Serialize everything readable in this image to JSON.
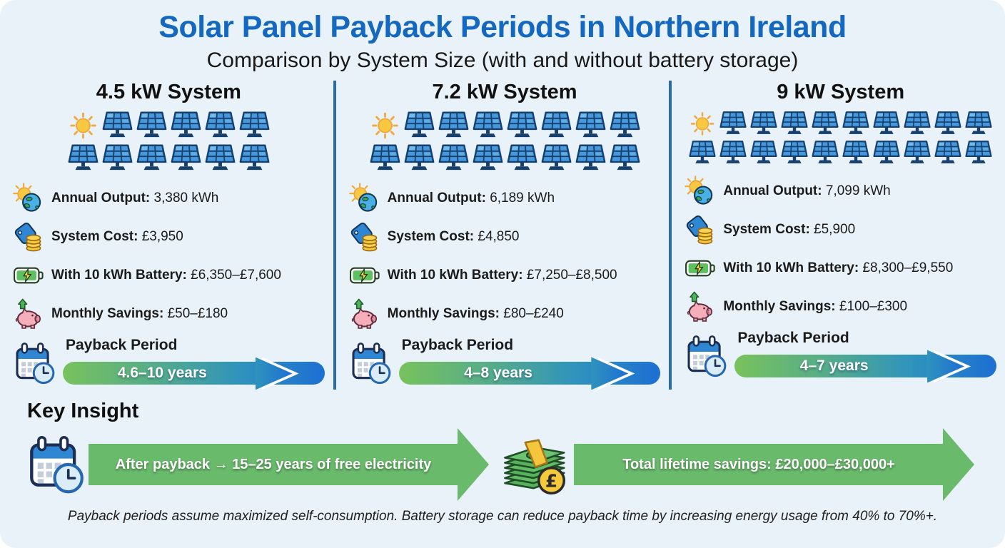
{
  "header": {
    "title": "Solar Panel Payback Periods in Northern Ireland",
    "subtitle": "Comparison by System Size (with and without battery storage)"
  },
  "columns": [
    {
      "title": "4.5 kW System",
      "pictograph": {
        "sun": 1,
        "panels_row1": 5,
        "panels_row2": 6
      },
      "stats": [
        {
          "icon": "sun-earth-icon",
          "label": "Annual Output:",
          "value": "3,380 kWh"
        },
        {
          "icon": "price-tag-coins-icon",
          "label": "System Cost:",
          "value": "£3,950"
        },
        {
          "icon": "battery-icon",
          "label": "With 10 kWh Battery:",
          "value": "£6,350–£7,600"
        },
        {
          "icon": "piggy-bank-icon",
          "label": "Monthly Savings:",
          "value": "£50–£180"
        }
      ],
      "payback": {
        "icon": "calendar-clock-icon",
        "label": "Payback Period",
        "value": "4.6–10 years"
      }
    },
    {
      "title": "7.2 kW System",
      "pictograph": {
        "sun": 1,
        "panels_row1": 7,
        "panels_row2": 8
      },
      "stats": [
        {
          "icon": "sun-earth-icon",
          "label": "Annual Output:",
          "value": "6,189 kWh"
        },
        {
          "icon": "price-tag-coins-icon",
          "label": "System Cost:",
          "value": "£4,850"
        },
        {
          "icon": "battery-icon",
          "label": "With 10 kWh Battery:",
          "value": "£7,250–£8,500"
        },
        {
          "icon": "piggy-bank-icon",
          "label": "Monthly Savings:",
          "value": "£80–£240"
        }
      ],
      "payback": {
        "icon": "calendar-clock-icon",
        "label": "Payback Period",
        "value": "4–8 years"
      }
    },
    {
      "title": "9 kW System",
      "pictograph": {
        "sun": 1,
        "panels_row1": 9,
        "panels_row2": 10
      },
      "stats": [
        {
          "icon": "sun-earth-icon",
          "label": "Annual Output:",
          "value": "7,099 kWh"
        },
        {
          "icon": "price-tag-coins-icon",
          "label": "System Cost:",
          "value": "£5,900"
        },
        {
          "icon": "battery-icon",
          "label": "With 10 kWh Battery:",
          "value": "£8,300–£9,550"
        },
        {
          "icon": "piggy-bank-icon",
          "label": "Monthly Savings:",
          "value": "£100–£300"
        }
      ],
      "payback": {
        "icon": "calendar-clock-icon",
        "label": "Payback Period",
        "value": "4–7 years"
      }
    }
  ],
  "key_insight": {
    "heading": "Key Insight",
    "items": [
      {
        "icon": "calendar-clock-icon",
        "text": "After payback → 15–25 years of free electricity"
      },
      {
        "icon": "money-stack-icon",
        "text": "Total lifetime savings: £20,000–£30,000+"
      }
    ]
  },
  "footer": {
    "note": "Payback periods assume maximized self-consumption. Battery storage can reduce payback time by increasing energy usage from 40% to 70%+."
  },
  "colors": {
    "background": "#e9f2f9",
    "title_blue": "#1468bf",
    "divider_blue": "#2b6cab",
    "arrow_green": "#6aba6c",
    "payback_gradient_start": "#78c25c",
    "payback_gradient_end": "#1d6fd3",
    "panel_blue": "#4598dc",
    "panel_outline": "#17406e"
  },
  "chart_data": {
    "type": "table",
    "title": "Solar Panel Payback Periods in Northern Ireland",
    "subtitle": "Comparison by System Size (with and without battery storage)",
    "categories": [
      "4.5 kW System",
      "7.2 kW System",
      "9 kW System"
    ],
    "series": [
      {
        "name": "Annual Output (kWh)",
        "values": [
          3380,
          6189,
          7099
        ]
      },
      {
        "name": "System Cost (£)",
        "values": [
          3950,
          4850,
          5900
        ]
      },
      {
        "name": "With 10 kWh Battery (£)",
        "values": [
          "6,350–7,600",
          "7,250–8,500",
          "8,300–9,550"
        ]
      },
      {
        "name": "Monthly Savings (£)",
        "values": [
          "50–180",
          "80–240",
          "100–300"
        ]
      },
      {
        "name": "Payback Period (years)",
        "values": [
          "4.6–10",
          "4–8",
          "4–7"
        ]
      },
      {
        "name": "Solar panel pictograph count",
        "values": [
          11,
          15,
          19
        ]
      }
    ],
    "annotations": [
      "After payback → 15–25 years of free electricity",
      "Total lifetime savings: £20,000–£30,000+"
    ]
  }
}
